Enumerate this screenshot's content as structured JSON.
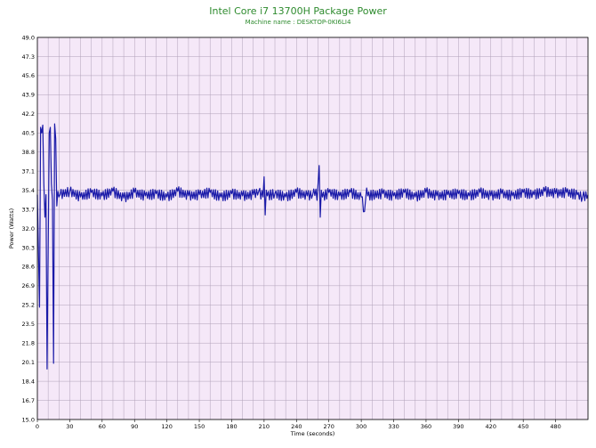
{
  "chart_data": {
    "type": "line",
    "title": "Intel Core i7 13700H Package Power",
    "subtitle": "Machine name : DESKTOP-0KI6LI4",
    "xlabel": "Time (seconds)",
    "ylabel": "Power (Watts)",
    "xlim": [
      0,
      510
    ],
    "ylim": [
      15.0,
      49.0
    ],
    "x_ticks": [
      "0",
      "30",
      "60",
      "90",
      "120",
      "150",
      "180",
      "210",
      "240",
      "270",
      "300",
      "330",
      "360",
      "390",
      "420",
      "450",
      "480"
    ],
    "x_tick_values": [
      0,
      30,
      60,
      90,
      120,
      150,
      180,
      210,
      240,
      270,
      300,
      330,
      360,
      390,
      420,
      450,
      480
    ],
    "y_ticks": [
      "15.0",
      "16.7",
      "18.4",
      "20.1",
      "21.8",
      "23.5",
      "25.2",
      "26.9",
      "28.6",
      "30.3",
      "32.0",
      "33.7",
      "35.4",
      "37.1",
      "38.8",
      "40.5",
      "42.2",
      "43.9",
      "45.6",
      "47.3",
      "49.0"
    ],
    "y_tick_values": [
      15.0,
      16.7,
      18.4,
      20.1,
      21.8,
      23.5,
      25.2,
      26.9,
      28.6,
      30.3,
      32.0,
      33.7,
      35.4,
      37.1,
      38.8,
      40.5,
      42.2,
      43.9,
      45.6,
      47.3,
      49.0
    ],
    "grid": true,
    "colors": {
      "line": "#1a1aa8",
      "plot_background": "#f5e8f8",
      "grid": "#b0a0b8",
      "title": "#2e8b2e"
    },
    "series": [
      {
        "values": [
          [
            0,
            35.0
          ],
          [
            1,
            30.0
          ],
          [
            2,
            25.0
          ],
          [
            3,
            41.0
          ],
          [
            4,
            40.5
          ],
          [
            5,
            41.2
          ],
          [
            6,
            36.0
          ],
          [
            7,
            33.0
          ],
          [
            8,
            35.0
          ],
          [
            9,
            19.5
          ],
          [
            10,
            30.0
          ],
          [
            11,
            40.5
          ],
          [
            12,
            41.0
          ],
          [
            13,
            36.0
          ],
          [
            14,
            34.5
          ],
          [
            15,
            20.0
          ],
          [
            16,
            41.3
          ],
          [
            17,
            40.0
          ],
          [
            18,
            34.0
          ],
          [
            19,
            35.3
          ],
          [
            20,
            34.8
          ],
          [
            21,
            35.0
          ],
          [
            30,
            35.3
          ],
          [
            40,
            34.8
          ],
          [
            50,
            35.2
          ],
          [
            60,
            34.9
          ],
          [
            70,
            35.3
          ],
          [
            80,
            34.7
          ],
          [
            90,
            35.2
          ],
          [
            100,
            34.9
          ],
          [
            110,
            35.1
          ],
          [
            120,
            34.8
          ],
          [
            130,
            35.3
          ],
          [
            140,
            34.9
          ],
          [
            150,
            35.0
          ],
          [
            160,
            35.2
          ],
          [
            170,
            34.8
          ],
          [
            180,
            35.1
          ],
          [
            190,
            34.9
          ],
          [
            200,
            35.0
          ],
          [
            205,
            35.3
          ],
          [
            209,
            34.8
          ],
          [
            210,
            36.6
          ],
          [
            211,
            33.2
          ],
          [
            212,
            35.4
          ],
          [
            213,
            34.9
          ],
          [
            220,
            35.1
          ],
          [
            230,
            34.8
          ],
          [
            240,
            35.2
          ],
          [
            250,
            34.9
          ],
          [
            255,
            35.0
          ],
          [
            258,
            35.5
          ],
          [
            259,
            34.5
          ],
          [
            260,
            36.0
          ],
          [
            261,
            37.6
          ],
          [
            262,
            33.0
          ],
          [
            263,
            35.4
          ],
          [
            264,
            34.8
          ],
          [
            270,
            35.2
          ],
          [
            280,
            34.9
          ],
          [
            290,
            35.2
          ],
          [
            300,
            34.8
          ],
          [
            303,
            33.5
          ],
          [
            305,
            35.6
          ],
          [
            306,
            34.9
          ],
          [
            320,
            35.1
          ],
          [
            330,
            34.9
          ],
          [
            340,
            35.2
          ],
          [
            350,
            34.8
          ],
          [
            360,
            35.2
          ],
          [
            370,
            34.9
          ],
          [
            380,
            35.0
          ],
          [
            390,
            35.1
          ],
          [
            400,
            34.9
          ],
          [
            410,
            35.2
          ],
          [
            420,
            34.9
          ],
          [
            430,
            35.1
          ],
          [
            440,
            34.9
          ],
          [
            450,
            35.2
          ],
          [
            460,
            35.0
          ],
          [
            470,
            35.3
          ],
          [
            480,
            35.1
          ],
          [
            490,
            35.2
          ],
          [
            500,
            35.0
          ],
          [
            505,
            34.8
          ],
          [
            510,
            35.0
          ]
        ]
      }
    ]
  }
}
